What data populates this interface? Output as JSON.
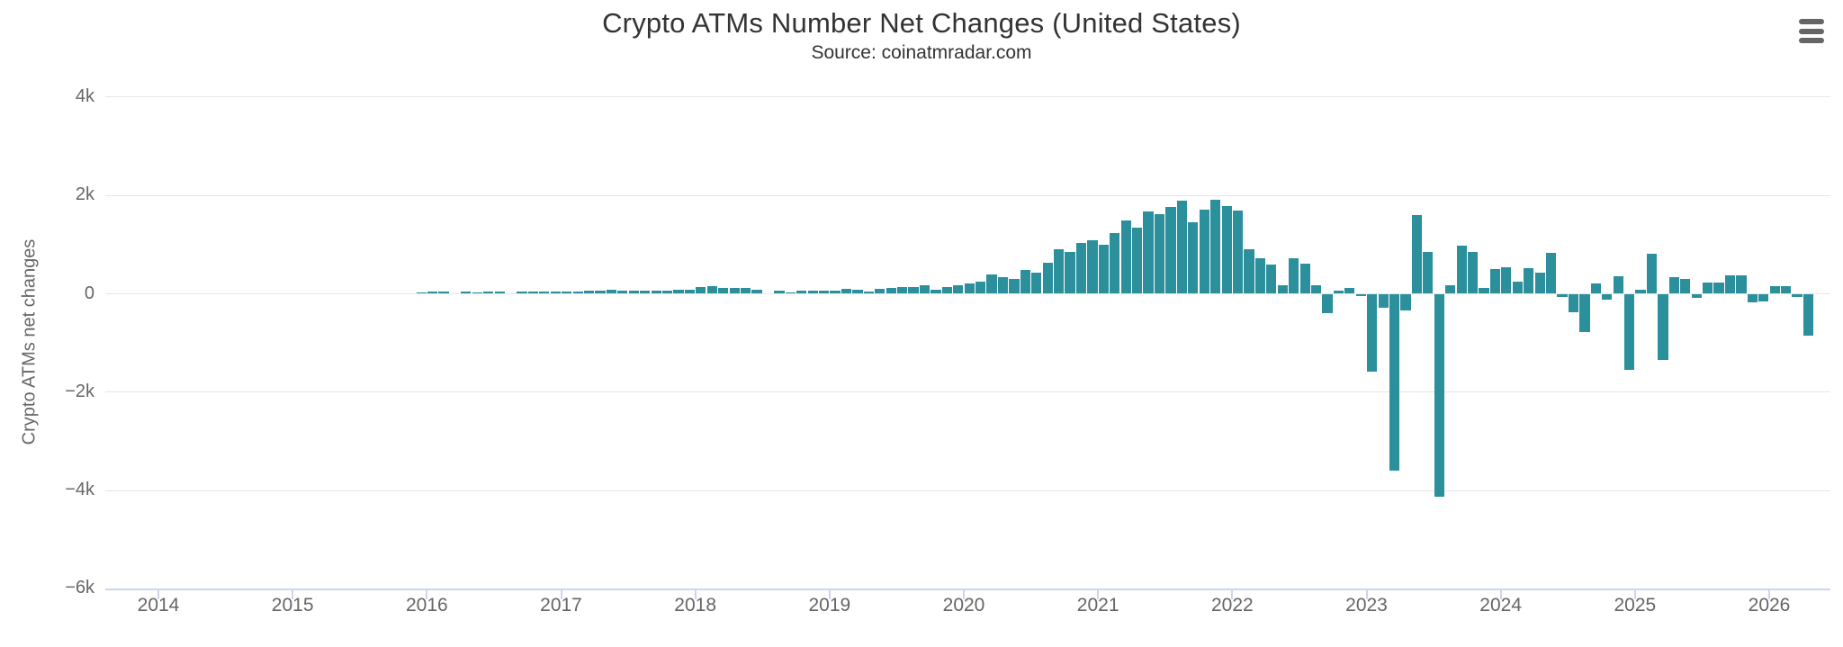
{
  "menu": {
    "icon": "hamburger-menu-icon"
  },
  "chart_data": {
    "type": "bar",
    "title": "Crypto ATMs Number Net Changes (United States)",
    "subtitle": "Source: coinatmradar.com",
    "xlabel": "",
    "ylabel": "Crypto ATMs net changes",
    "grid": true,
    "legend": false,
    "bar_color": "#2b8f9c",
    "grid_color": "#e6e6e6",
    "axis_color": "#ccd6eb",
    "label_color": "#666666",
    "title_color": "#333333",
    "ylim": [
      -6600,
      4700
    ],
    "y_ticks": [
      {
        "label": "4k",
        "value": 4000
      },
      {
        "label": "2k",
        "value": 2000
      },
      {
        "label": "0",
        "value": 0
      },
      {
        "label": "−2k",
        "value": -2000
      },
      {
        "label": "−4k",
        "value": -4000
      },
      {
        "label": "−6k",
        "value": -6000
      }
    ],
    "x_ticks": [
      {
        "label": "2014",
        "year": 2014
      },
      {
        "label": "2015",
        "year": 2015
      },
      {
        "label": "2016",
        "year": 2016
      },
      {
        "label": "2017",
        "year": 2017
      },
      {
        "label": "2018",
        "year": 2018
      },
      {
        "label": "2019",
        "year": 2019
      },
      {
        "label": "2020",
        "year": 2020
      },
      {
        "label": "2021",
        "year": 2021
      },
      {
        "label": "2022",
        "year": 2022
      },
      {
        "label": "2023",
        "year": 2023
      },
      {
        "label": "2024",
        "year": 2024
      },
      {
        "label": "2025",
        "year": 2025
      },
      {
        "label": "2026",
        "year": 2026
      }
    ],
    "frequency": "monthly",
    "series_start": "2015-12",
    "series_name": "Crypto ATMs net changes",
    "values": [
      30,
      45,
      40,
      0,
      40,
      35,
      40,
      40,
      0,
      45,
      45,
      45,
      45,
      45,
      50,
      55,
      55,
      75,
      55,
      55,
      65,
      55,
      60,
      90,
      75,
      130,
      150,
      115,
      110,
      110,
      90,
      0,
      60,
      35,
      65,
      65,
      70,
      70,
      105,
      80,
      45,
      95,
      125,
      145,
      145,
      175,
      80,
      135,
      180,
      210,
      250,
      395,
      330,
      300,
      485,
      435,
      635,
      910,
      850,
      1035,
      1095,
      1005,
      1230,
      1490,
      1340,
      1675,
      1615,
      1770,
      1895,
      1450,
      1705,
      1920,
      1790,
      1700,
      910,
      715,
      590,
      180,
      720,
      620,
      180,
      -400,
      60,
      120,
      -50,
      -1590,
      -280,
      -3600,
      -340,
      1595,
      860,
      -4120,
      170,
      985,
      850,
      120,
      510,
      545,
      240,
      530,
      430,
      830,
      -60,
      -370,
      -770,
      210,
      -125,
      350,
      -1550,
      90,
      820,
      -1345,
      330,
      300,
      -80,
      220,
      230,
      380,
      370,
      -170,
      -160,
      160,
      160,
      -70,
      -850
    ]
  }
}
